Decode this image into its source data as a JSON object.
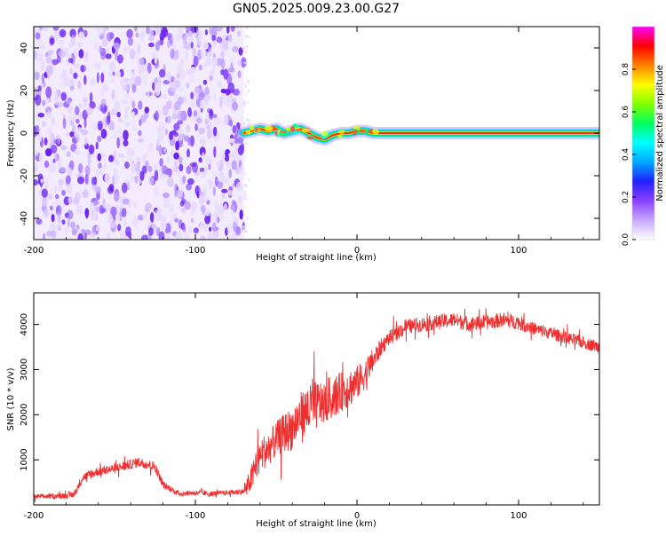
{
  "title": "GN05.2025.009.23.00.G27",
  "colors": {
    "snr_line": "#f03030",
    "axis": "#000000",
    "rainbow": [
      "#ffffff",
      "#d8c0ff",
      "#8040ff",
      "#2020ff",
      "#00a0ff",
      "#00ffff",
      "#00ff60",
      "#80ff00",
      "#ffff00",
      "#ff8000",
      "#ff0000",
      "#ff00ff"
    ]
  },
  "chart_data": [
    {
      "type": "heatmap",
      "name": "spectrogram",
      "xlabel": "Height of straight line (km)",
      "ylabel": "Frequency (Hz)",
      "xlim": [
        -200,
        150
      ],
      "ylim": [
        -50,
        50
      ],
      "xticks": [
        -200,
        -100,
        0,
        100
      ],
      "yticks": [
        -40,
        -20,
        0,
        20,
        40
      ],
      "noise_region_x": [
        -200,
        -70
      ],
      "signal_track": {
        "x": [
          -70,
          -65,
          -60,
          -55,
          -50,
          -45,
          -40,
          -35,
          -30,
          -25,
          -20,
          -15,
          -10,
          -5,
          0,
          5,
          10,
          15,
          150
        ],
        "freq_hz": [
          0,
          1,
          2,
          1,
          2,
          0,
          1,
          2,
          0,
          -2,
          -3,
          -1,
          0,
          0,
          1,
          1,
          0,
          0,
          0
        ]
      },
      "colorbar": {
        "label": "Normalized spectral amplitude",
        "range": [
          0,
          1
        ],
        "ticks": [
          "0.0",
          "0.2",
          "0.4",
          "0.6",
          "0.8"
        ]
      }
    },
    {
      "type": "line",
      "name": "snr",
      "xlabel": "Height of straight line (km)",
      "ylabel": "SNR (10 * v/v)",
      "xlim": [
        -200,
        150
      ],
      "ylim": [
        0,
        4700
      ],
      "xticks": [
        -200,
        -100,
        0,
        100
      ],
      "yticks": [
        1000,
        2000,
        3000,
        4000
      ],
      "series": [
        {
          "name": "SNR",
          "x": [
            -200,
            -185,
            -175,
            -170,
            -160,
            -150,
            -140,
            -135,
            -130,
            -125,
            -120,
            -115,
            -110,
            -100,
            -90,
            -80,
            -70,
            -65,
            -60,
            -55,
            -50,
            -45,
            -40,
            -35,
            -30,
            -25,
            -20,
            -15,
            -10,
            -5,
            0,
            5,
            10,
            15,
            20,
            25,
            30,
            40,
            50,
            60,
            70,
            80,
            90,
            100,
            110,
            120,
            130,
            140,
            150
          ],
          "values": [
            180,
            200,
            230,
            600,
            750,
            800,
            900,
            950,
            900,
            850,
            450,
            350,
            250,
            270,
            250,
            270,
            300,
            600,
            1100,
            1250,
            1450,
            1600,
            1700,
            2000,
            2100,
            2200,
            2300,
            2400,
            2500,
            2600,
            2700,
            2900,
            3200,
            3500,
            3700,
            3800,
            3950,
            4000,
            4050,
            4100,
            4000,
            4050,
            4100,
            4050,
            3900,
            3800,
            3700,
            3600,
            3500
          ],
          "spread": [
            100,
            100,
            150,
            180,
            200,
            200,
            200,
            200,
            200,
            200,
            150,
            120,
            100,
            100,
            100,
            100,
            120,
            600,
            700,
            700,
            700,
            800,
            900,
            900,
            1000,
            1000,
            900,
            900,
            800,
            800,
            700,
            600,
            500,
            350,
            300,
            300,
            300,
            300,
            300,
            300,
            300,
            300,
            300,
            300,
            250,
            250,
            250,
            250,
            250
          ]
        }
      ]
    }
  ]
}
